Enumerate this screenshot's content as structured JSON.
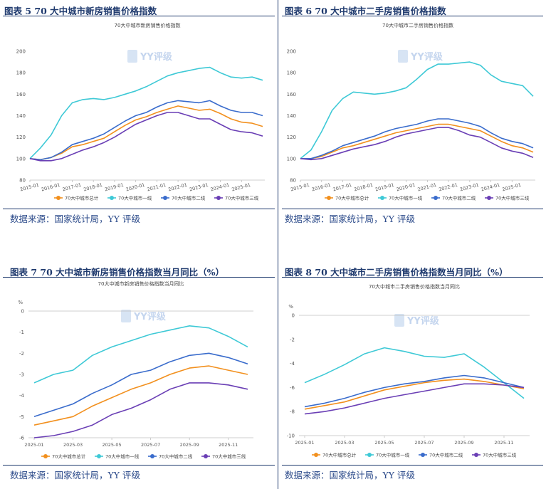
{
  "colors": {
    "total": "#f2901e",
    "tier1": "#3ec9d6",
    "tier2": "#3a6ccc",
    "tier3": "#6a3fb5",
    "header": "#1f3a6e",
    "source": "#2b4a8a"
  },
  "watermark": "YY评级",
  "panels": [
    {
      "title": "图表 5 70 大中城市新房销售价格指数",
      "source": "数据来源：国家统计局，YY 评级"
    },
    {
      "title": "图表 6 70 大中城市二手房销售价格指数",
      "source": "数据来源：国家统计局，YY 评级"
    },
    {
      "title": "图表 7 70 大中城市新房销售价格指数当月同比（%）",
      "source": "数据来源：国家统计局，YY 评级"
    },
    {
      "title": "图表 8 70 大中城市二手房销售价格指数当月同比（%）",
      "source": "数据来源：国家统计局，YY 评级"
    }
  ],
  "chart_data": [
    {
      "type": "line",
      "title": "70大中城市新房销售价格指数",
      "xlabel": "",
      "ylabel": "",
      "x_ticks": [
        "2015-01",
        "2016-01",
        "2017-01",
        "2018-01",
        "2019-01",
        "2020-01",
        "2021-01",
        "2022-01",
        "2023-01",
        "2024-01",
        "2025-01"
      ],
      "xlim": [
        2015.0,
        2026.1
      ],
      "ylim": [
        80,
        200
      ],
      "y_ticks": [
        "80",
        "100",
        "120",
        "140",
        "160",
        "180",
        "200"
      ],
      "legend": "bottom",
      "series": [
        {
          "name": "70大中城市总计",
          "key": "total",
          "x": [
            2015,
            2015.5,
            2016,
            2016.5,
            2017,
            2017.5,
            2018,
            2018.5,
            2019,
            2019.5,
            2020,
            2020.5,
            2021,
            2021.5,
            2022,
            2022.5,
            2023,
            2023.5,
            2024,
            2024.5,
            2025,
            2025.5,
            2026
          ],
          "y": [
            100,
            99,
            101,
            105,
            111,
            113,
            116,
            119,
            125,
            131,
            136,
            139,
            143,
            146,
            149,
            147,
            145,
            146,
            142,
            137,
            134,
            133,
            130
          ]
        },
        {
          "name": "70大中城市一线",
          "key": "tier1",
          "x": [
            2015,
            2015.5,
            2016,
            2016.5,
            2017,
            2017.5,
            2018,
            2018.5,
            2019,
            2019.5,
            2020,
            2020.5,
            2021,
            2021.5,
            2022,
            2022.5,
            2023,
            2023.5,
            2024,
            2024.5,
            2025,
            2025.5,
            2026
          ],
          "y": [
            100,
            110,
            122,
            140,
            152,
            155,
            156,
            155,
            157,
            160,
            163,
            167,
            172,
            177,
            180,
            182,
            184,
            185,
            180,
            176,
            175,
            176,
            173
          ]
        },
        {
          "name": "70大中城市二线",
          "key": "tier2",
          "x": [
            2015,
            2015.5,
            2016,
            2016.5,
            2017,
            2017.5,
            2018,
            2018.5,
            2019,
            2019.5,
            2020,
            2020.5,
            2021,
            2021.5,
            2022,
            2022.5,
            2023,
            2023.5,
            2024,
            2024.5,
            2025,
            2025.5,
            2026
          ],
          "y": [
            100,
            99,
            101,
            106,
            113,
            116,
            119,
            123,
            129,
            135,
            140,
            143,
            148,
            152,
            154,
            153,
            152,
            154,
            149,
            145,
            143,
            143,
            140
          ]
        },
        {
          "name": "70大中城市三线",
          "key": "tier3",
          "x": [
            2015,
            2015.5,
            2016,
            2016.5,
            2017,
            2017.5,
            2018,
            2018.5,
            2019,
            2019.5,
            2020,
            2020.5,
            2021,
            2021.5,
            2022,
            2022.5,
            2023,
            2023.5,
            2024,
            2024.5,
            2025,
            2025.5,
            2026
          ],
          "y": [
            100,
            98,
            98,
            100,
            104,
            108,
            111,
            115,
            120,
            126,
            132,
            136,
            140,
            143,
            143,
            140,
            137,
            137,
            132,
            127,
            125,
            124,
            121
          ]
        }
      ]
    },
    {
      "type": "line",
      "title": "70大中城市二手房销售价格指数",
      "xlabel": "",
      "ylabel": "",
      "x_ticks": [
        "2015-01",
        "2016-01",
        "2017-01",
        "2018-01",
        "2019-01",
        "2020-01",
        "2021-01",
        "2022-01",
        "2023-01",
        "2024-01",
        "2025-01"
      ],
      "xlim": [
        2015.0,
        2026.1
      ],
      "ylim": [
        80,
        200
      ],
      "y_ticks": [
        "80",
        "100",
        "120",
        "140",
        "160",
        "180",
        "200"
      ],
      "legend": "bottom",
      "series": [
        {
          "name": "70大中城市总计",
          "key": "total",
          "x": [
            2015,
            2015.5,
            2016,
            2016.5,
            2017,
            2017.5,
            2018,
            2018.5,
            2019,
            2019.5,
            2020,
            2020.5,
            2021,
            2021.5,
            2022,
            2022.5,
            2023,
            2023.5,
            2024,
            2024.5,
            2025,
            2025.5,
            2026
          ],
          "y": [
            100,
            100,
            102,
            106,
            110,
            112,
            115,
            118,
            121,
            124,
            126,
            128,
            130,
            132,
            132,
            130,
            128,
            126,
            121,
            116,
            112,
            110,
            106
          ]
        },
        {
          "name": "70大中城市一线",
          "key": "tier1",
          "x": [
            2015,
            2015.5,
            2016,
            2016.5,
            2017,
            2017.5,
            2018,
            2018.5,
            2019,
            2019.5,
            2020,
            2020.5,
            2021,
            2021.5,
            2022,
            2022.5,
            2023,
            2023.5,
            2024,
            2024.5,
            2025,
            2025.5,
            2026
          ],
          "y": [
            100,
            108,
            125,
            145,
            156,
            162,
            161,
            160,
            161,
            163,
            166,
            174,
            183,
            188,
            188,
            189,
            190,
            187,
            178,
            172,
            170,
            168,
            158
          ]
        },
        {
          "name": "70大中城市二线",
          "key": "tier2",
          "x": [
            2015,
            2015.5,
            2016,
            2016.5,
            2017,
            2017.5,
            2018,
            2018.5,
            2019,
            2019.5,
            2020,
            2020.5,
            2021,
            2021.5,
            2022,
            2022.5,
            2023,
            2023.5,
            2024,
            2024.5,
            2025,
            2025.5,
            2026
          ],
          "y": [
            100,
            100,
            103,
            107,
            112,
            115,
            118,
            121,
            125,
            128,
            130,
            132,
            135,
            137,
            137,
            135,
            133,
            130,
            124,
            119,
            116,
            114,
            110
          ]
        },
        {
          "name": "70大中城市三线",
          "key": "tier3",
          "x": [
            2015,
            2015.5,
            2016,
            2016.5,
            2017,
            2017.5,
            2018,
            2018.5,
            2019,
            2019.5,
            2020,
            2020.5,
            2021,
            2021.5,
            2022,
            2022.5,
            2023,
            2023.5,
            2024,
            2024.5,
            2025,
            2025.5,
            2026
          ],
          "y": [
            100,
            99,
            100,
            103,
            106,
            109,
            111,
            113,
            116,
            120,
            123,
            125,
            127,
            129,
            129,
            126,
            122,
            120,
            115,
            110,
            107,
            105,
            101
          ]
        }
      ]
    },
    {
      "type": "line",
      "title": "70大中城市新房销售价格指数当月同比",
      "ylabel": "%",
      "x_ticks": [
        "2025-01",
        "2025-03",
        "2025-05",
        "2025-07",
        "2025-09",
        "2025-11"
      ],
      "categories": [
        "2025-01",
        "2025-02",
        "2025-03",
        "2025-04",
        "2025-05",
        "2025-06",
        "2025-07",
        "2025-08",
        "2025-09",
        "2025-10",
        "2025-11",
        "2025-12"
      ],
      "ylim": [
        -6,
        0
      ],
      "y_ticks": [
        "0",
        "-1",
        "-2",
        "-3",
        "-4",
        "-5",
        "-6"
      ],
      "legend": "bottom",
      "series": [
        {
          "name": "70大中城市总计",
          "key": "total",
          "values": [
            -5.4,
            -5.2,
            -5.0,
            -4.5,
            -4.1,
            -3.7,
            -3.4,
            -3.0,
            -2.7,
            -2.6,
            -2.8,
            -3.0
          ]
        },
        {
          "name": "70大中城市一线",
          "key": "tier1",
          "values": [
            -3.4,
            -3.0,
            -2.8,
            -2.1,
            -1.7,
            -1.4,
            -1.1,
            -0.9,
            -0.7,
            -0.8,
            -1.2,
            -1.7
          ]
        },
        {
          "name": "70大中城市二线",
          "key": "tier2",
          "values": [
            -5.0,
            -4.7,
            -4.4,
            -3.9,
            -3.5,
            -3.0,
            -2.8,
            -2.4,
            -2.1,
            -2.0,
            -2.2,
            -2.5
          ]
        },
        {
          "name": "70大中城市三线",
          "key": "tier3",
          "values": [
            -6.0,
            -5.9,
            -5.7,
            -5.4,
            -4.9,
            -4.6,
            -4.2,
            -3.7,
            -3.4,
            -3.4,
            -3.5,
            -3.7
          ]
        }
      ]
    },
    {
      "type": "line",
      "title": "70大中城市二手房销售价格指数当月同比",
      "ylabel": "%",
      "x_ticks": [
        "2025-01",
        "2025-03",
        "2025-05",
        "2025-07",
        "2025-09",
        "2025-11"
      ],
      "categories": [
        "2025-01",
        "2025-02",
        "2025-03",
        "2025-04",
        "2025-05",
        "2025-06",
        "2025-07",
        "2025-08",
        "2025-09",
        "2025-10",
        "2025-11",
        "2025-12"
      ],
      "ylim": [
        -10,
        0
      ],
      "y_ticks": [
        "0",
        "-2",
        "-4",
        "-6",
        "-8",
        "-10"
      ],
      "legend": "bottom",
      "series": [
        {
          "name": "70大中城市总计",
          "key": "total",
          "values": [
            -7.8,
            -7.5,
            -7.2,
            -6.7,
            -6.2,
            -5.9,
            -5.6,
            -5.4,
            -5.3,
            -5.5,
            -5.8,
            -6.1
          ]
        },
        {
          "name": "70大中城市一线",
          "key": "tier1",
          "values": [
            -5.6,
            -4.9,
            -4.1,
            -3.2,
            -2.7,
            -3.0,
            -3.4,
            -3.5,
            -3.2,
            -4.3,
            -5.6,
            -6.9
          ]
        },
        {
          "name": "70大中城市二线",
          "key": "tier2",
          "values": [
            -7.6,
            -7.3,
            -6.9,
            -6.4,
            -6.0,
            -5.7,
            -5.5,
            -5.2,
            -5.0,
            -5.2,
            -5.6,
            -6.0
          ]
        },
        {
          "name": "70大中城市三线",
          "key": "tier3",
          "values": [
            -8.2,
            -8.0,
            -7.7,
            -7.3,
            -6.9,
            -6.6,
            -6.3,
            -6.0,
            -5.7,
            -5.7,
            -5.8,
            -6.0
          ]
        }
      ]
    }
  ]
}
